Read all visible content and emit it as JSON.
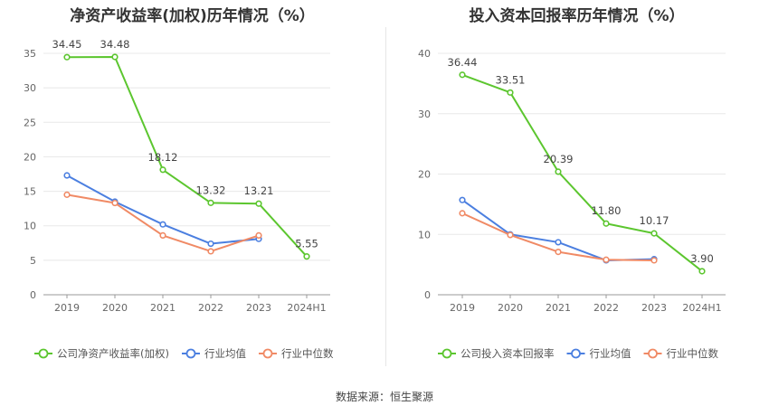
{
  "source": "数据来源：恒生聚源",
  "charts": {
    "left": {
      "title": "净资产收益率(加权)历年情况（%）",
      "legend": [
        {
          "label": "公司净资产收益率(加权)",
          "color": "#5cc62f"
        },
        {
          "label": "行业均值",
          "color": "#4b7fe0"
        },
        {
          "label": "行业中位数",
          "color": "#f08a65"
        }
      ]
    },
    "right": {
      "title": "投入资本回报率历年情况（%）",
      "legend": [
        {
          "label": "公司投入资本回报率",
          "color": "#5cc62f"
        },
        {
          "label": "行业均值",
          "color": "#4b7fe0"
        },
        {
          "label": "行业中位数",
          "color": "#f08a65"
        }
      ]
    }
  },
  "chart_data": [
    {
      "type": "line",
      "title": "净资产收益率(加权)历年情况（%）",
      "categories": [
        "2019",
        "2020",
        "2021",
        "2022",
        "2023",
        "2024H1"
      ],
      "ylim": [
        0,
        35
      ],
      "yticks": [
        0,
        5,
        10,
        15,
        20,
        25,
        30,
        35
      ],
      "grid": true,
      "legend_position": "bottom",
      "series": [
        {
          "name": "公司净资产收益率(加权)",
          "color": "#5cc62f",
          "values": [
            34.45,
            34.48,
            18.12,
            13.32,
            13.21,
            5.55
          ],
          "labels": [
            "34.45",
            "34.48",
            "18.12",
            "13.32",
            "13.21",
            "5.55"
          ]
        },
        {
          "name": "行业均值",
          "color": "#4b7fe0",
          "values": [
            17.3,
            13.5,
            10.2,
            7.4,
            8.1,
            null
          ]
        },
        {
          "name": "行业中位数",
          "color": "#f08a65",
          "values": [
            14.5,
            13.3,
            8.6,
            6.3,
            8.6,
            null
          ]
        }
      ]
    },
    {
      "type": "line",
      "title": "投入资本回报率历年情况（%）",
      "categories": [
        "2019",
        "2020",
        "2021",
        "2022",
        "2023",
        "2024H1"
      ],
      "ylim": [
        0,
        40
      ],
      "yticks": [
        0,
        10,
        20,
        30,
        40
      ],
      "grid": true,
      "legend_position": "bottom",
      "series": [
        {
          "name": "公司投入资本回报率",
          "color": "#5cc62f",
          "values": [
            36.44,
            33.51,
            20.39,
            11.8,
            10.17,
            3.9
          ],
          "labels": [
            "36.44",
            "33.51",
            "20.39",
            "11.80",
            "10.17",
            "3.90"
          ]
        },
        {
          "name": "行业均值",
          "color": "#4b7fe0",
          "values": [
            15.7,
            10.0,
            8.7,
            5.7,
            5.9,
            null
          ]
        },
        {
          "name": "行业中位数",
          "color": "#f08a65",
          "values": [
            13.5,
            9.9,
            7.1,
            5.8,
            5.7,
            null
          ]
        }
      ]
    }
  ]
}
